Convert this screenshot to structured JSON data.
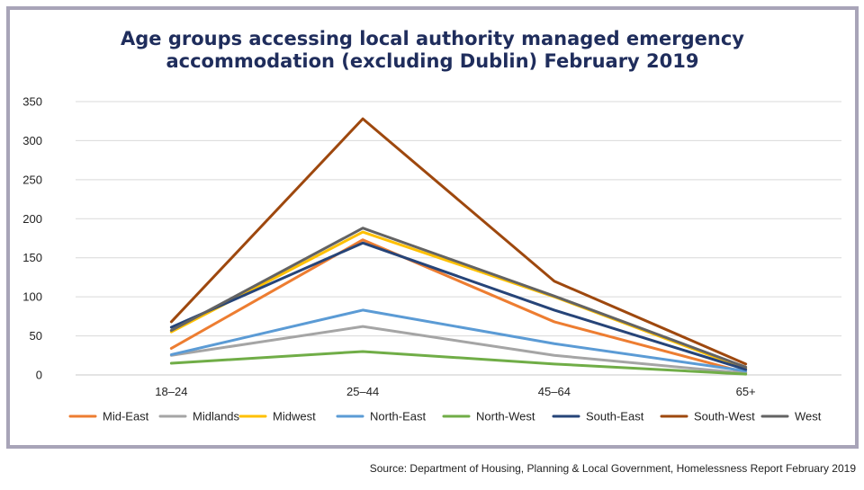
{
  "chart_data": {
    "type": "line",
    "title_line1": "Age groups accessing local authority managed emergency",
    "title_line2": "accommodation (excluding Dublin) February 2019",
    "categories": [
      "18–24",
      "25–44",
      "45–64",
      "65+"
    ],
    "ylim": [
      0,
      350
    ],
    "yticks": [
      0,
      50,
      100,
      150,
      200,
      250,
      300,
      350
    ],
    "grid": true,
    "legend_position": "bottom",
    "series": [
      {
        "name": "Mid-East",
        "color": "#ed7d31",
        "values": [
          34,
          173,
          68,
          3
        ]
      },
      {
        "name": "Midlands",
        "color": "#a5a5a5",
        "values": [
          25,
          62,
          25,
          2
        ]
      },
      {
        "name": "Midwest",
        "color": "#ffc000",
        "values": [
          55,
          183,
          100,
          8
        ]
      },
      {
        "name": "North-East",
        "color": "#5b9bd5",
        "values": [
          26,
          83,
          40,
          5
        ]
      },
      {
        "name": "North-West",
        "color": "#70ad47",
        "values": [
          15,
          30,
          14,
          1
        ]
      },
      {
        "name": "South-East",
        "color": "#264478",
        "values": [
          61,
          169,
          83,
          7
        ]
      },
      {
        "name": "South-West",
        "color": "#9e480e",
        "values": [
          68,
          328,
          120,
          14
        ]
      },
      {
        "name": "West",
        "color": "#636363",
        "values": [
          57,
          188,
          101,
          10
        ]
      }
    ]
  },
  "source": "Source: Department of Housing, Planning & Local Government, Homelessness Report February 2019"
}
